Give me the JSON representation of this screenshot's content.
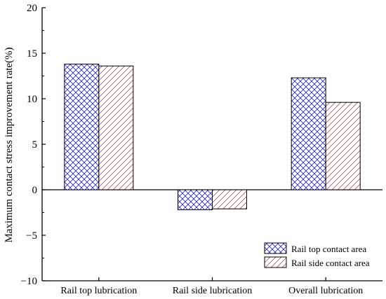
{
  "chart_data": {
    "type": "bar",
    "title": "",
    "xlabel": "",
    "ylabel": "Maximum contact stress improvement rate(%)",
    "ylim": [
      -10,
      20
    ],
    "yticks": [
      -10,
      -5,
      0,
      5,
      10,
      15,
      20
    ],
    "ytick_labels": [
      "−10",
      "−5",
      "0",
      "5",
      "10",
      "15",
      "20"
    ],
    "categories": [
      "Rail top lubrication",
      "Rail side lubrication",
      "Overall lubrication"
    ],
    "series": [
      {
        "name": "Rail top contact area",
        "values": [
          13.8,
          -2.2,
          12.3
        ],
        "color": "#2b2bd6",
        "pattern": "crosshatch"
      },
      {
        "name": "Rail side contact area",
        "values": [
          13.6,
          -2.1,
          9.6
        ],
        "color": "#e8474b",
        "pattern": "diagonal"
      }
    ],
    "grid": false,
    "legend": "bottom-right",
    "zero_line": true
  }
}
